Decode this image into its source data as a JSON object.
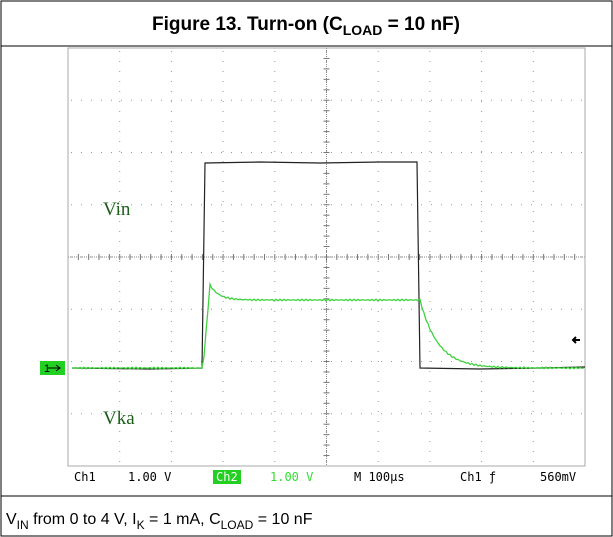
{
  "title": {
    "parts": [
      "Figure 13. Turn-on (C",
      "LOAD",
      " = 10 nF)"
    ]
  },
  "scope": {
    "labels": {
      "trace1": "Vin",
      "trace2": "Vka"
    },
    "ch1_marker": "1",
    "status": {
      "ch1": "Ch1",
      "ch1_scale": "1.00 V",
      "ch2": "Ch2",
      "ch2_scale": "1.00 V",
      "timebase": "M 100µs",
      "trigger": "Ch1 ƒ",
      "trigger_level": "560mV"
    }
  },
  "caption": {
    "parts": [
      "V",
      "IN",
      " from 0 to 4 V, I",
      "K",
      " = 1 mA, C",
      "LOAD",
      " = 10 nF"
    ]
  }
}
